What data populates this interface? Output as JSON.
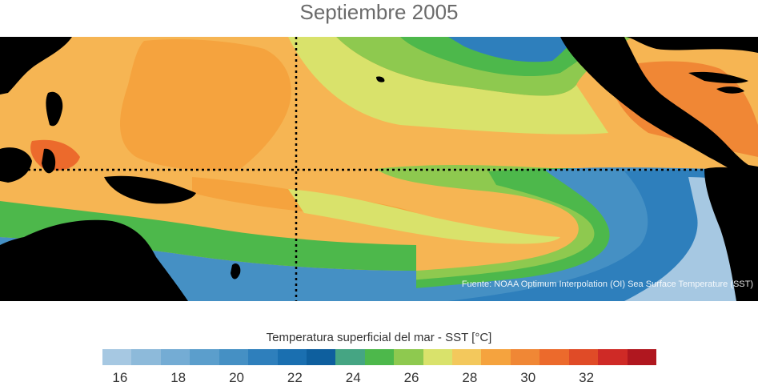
{
  "title": "Septiembre 2005",
  "source_note": "Fuente: NOAA Optimum Interpolation (OI) Sea Surface Temperature (SST)",
  "legend": {
    "title": "Temperatura superficial del mar - SST  [°C]",
    "ticks": [
      "16",
      "18",
      "20",
      "22",
      "24",
      "26",
      "28",
      "30",
      "32"
    ],
    "colors": [
      "#a6c8e2",
      "#8dbada",
      "#74acd4",
      "#5b9ecc",
      "#4590c4",
      "#2e7fbc",
      "#1a6fb0",
      "#0e5f9e",
      "#45a583",
      "#4db84b",
      "#8ec94f",
      "#d9e26b",
      "#f3c85c",
      "#f5a33e",
      "#f08735",
      "#ec6a2c",
      "#e04b27",
      "#cf2a26",
      "#b0171f"
    ]
  },
  "map": {
    "ocean_base": "#f6b553",
    "land_color": "#000000"
  }
}
